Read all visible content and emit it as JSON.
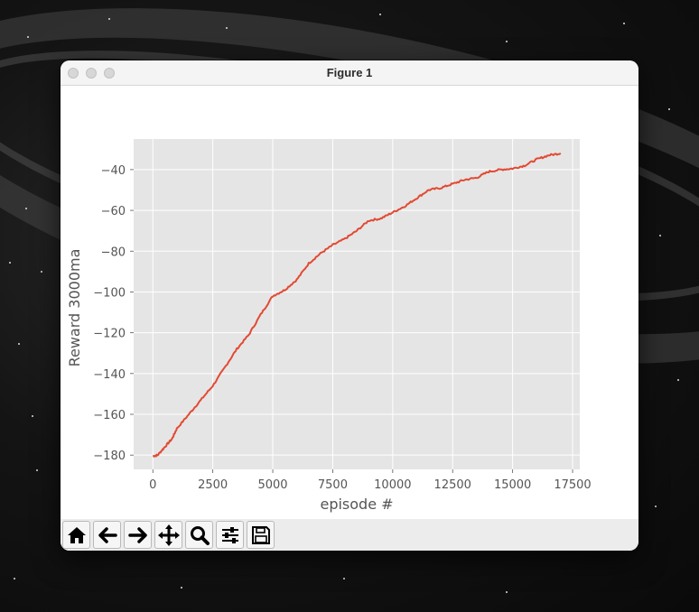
{
  "window": {
    "title": "Figure 1"
  },
  "toolbar": {
    "buttons": [
      {
        "name": "home-button",
        "icon": "home-icon"
      },
      {
        "name": "back-button",
        "icon": "arrow-left-icon"
      },
      {
        "name": "forward-button",
        "icon": "arrow-right-icon"
      },
      {
        "name": "pan-button",
        "icon": "move-icon"
      },
      {
        "name": "zoom-button",
        "icon": "magnifier-icon"
      },
      {
        "name": "configure-subplots-button",
        "icon": "sliders-icon"
      },
      {
        "name": "save-button",
        "icon": "floppy-disk-icon"
      }
    ]
  },
  "chart_data": {
    "type": "line",
    "title": "",
    "xlabel": "episode #",
    "ylabel": "Reward 3000ma",
    "xlim": [
      -800,
      17800
    ],
    "ylim": [
      -187,
      -25
    ],
    "xticks": [
      0,
      2500,
      5000,
      7500,
      10000,
      12500,
      15000,
      17500
    ],
    "yticks": [
      -180,
      -160,
      -140,
      -120,
      -100,
      -80,
      -60,
      -40
    ],
    "xtick_labels": [
      "0",
      "2500",
      "5000",
      "7500",
      "10000",
      "12500",
      "15000",
      "17500"
    ],
    "ytick_labels": [
      "−180",
      "−160",
      "−140",
      "−120",
      "−100",
      "−80",
      "−60",
      "−40"
    ],
    "grid": true,
    "style": "ggplot",
    "background": "#e5e5e5",
    "line_color": "#e24a33",
    "series": [
      {
        "x": [
          0,
          200,
          500,
          800,
          1000,
          1500,
          2000,
          2500,
          3000,
          3500,
          4000,
          4500,
          5000,
          5500,
          6000,
          6500,
          7000,
          7500,
          8000,
          8500,
          9000,
          9500,
          10000,
          10500,
          11000,
          11500,
          12000,
          12500,
          13000,
          13500,
          14000,
          14500,
          15000,
          15500,
          16000,
          16500,
          17000
        ],
        "y": [
          -180.5,
          -180,
          -176,
          -172,
          -167,
          -160,
          -153,
          -146,
          -137,
          -128,
          -121,
          -111,
          -102,
          -99,
          -94,
          -86,
          -81,
          -77,
          -74,
          -70,
          -65,
          -64,
          -61,
          -58,
          -54,
          -50,
          -49,
          -47,
          -45,
          -44,
          -41,
          -40,
          -39.5,
          -38,
          -35,
          -33,
          -32
        ]
      }
    ]
  }
}
